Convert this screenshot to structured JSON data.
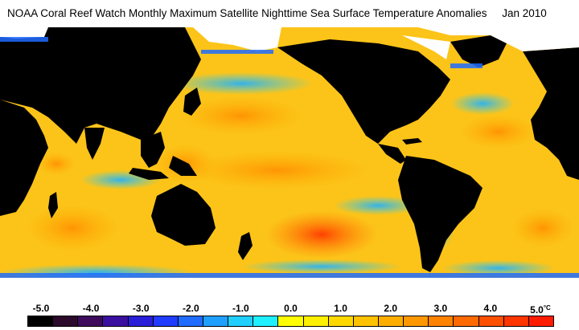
{
  "title": "NOAA Coral Reef Watch Monthly Maximum Satellite Nighttime Sea Surface Temperature Anomalies     Jan 2010",
  "map": {
    "description_type": "global sea surface temperature anomaly map",
    "colors": {
      "ocean_base": "#fcc419",
      "land": "#000000",
      "ice": "#ffffff"
    }
  },
  "legend": {
    "unit": "°C",
    "ticks": [
      "-5.0",
      "-4.0",
      "-3.0",
      "-2.0",
      "-1.0",
      "0.0",
      "1.0",
      "2.0",
      "3.0",
      "4.0",
      "5.0"
    ],
    "swatches": [
      "#000000",
      "#2b0a2b",
      "#3d0a5c",
      "#3a10a0",
      "#2a1fd8",
      "#1f3cff",
      "#1f6cff",
      "#1fa0ff",
      "#1fd0ff",
      "#1ff0ff",
      "#ffff00",
      "#ffef00",
      "#ffd800",
      "#ffc200",
      "#ffae00",
      "#ff9800",
      "#ff8200",
      "#ff6a00",
      "#ff5000",
      "#ff3600",
      "#ff1c00"
    ]
  }
}
